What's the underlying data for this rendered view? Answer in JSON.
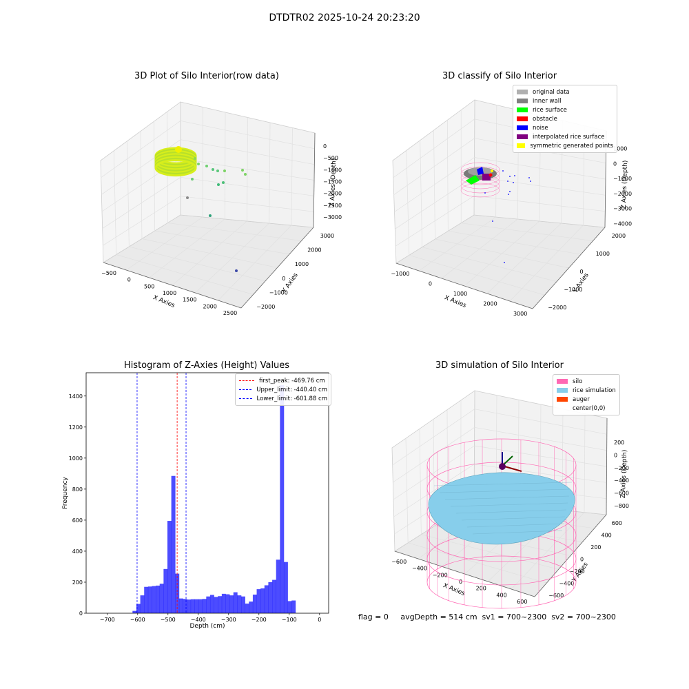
{
  "suptitle": "DTDTR02 2025-10-24 20:23:20",
  "panels": {
    "raw": {
      "title": "3D Plot of Silo Interior(row data)",
      "xlabel": "X Axies",
      "ylabel": "Y Axies",
      "zlabel": "Z Axies (Depth)",
      "xticks": [
        "−500",
        "0",
        "500",
        "1000",
        "1500",
        "2000",
        "2500"
      ],
      "yticks": [
        "−2000",
        "−1000",
        "0",
        "1000",
        "2000",
        "3000"
      ],
      "zticks": [
        "0",
        "−500",
        "−1000",
        "−1500",
        "−2000",
        "−2500",
        "−3000"
      ]
    },
    "classify": {
      "title": "3D classify of Silo Interior",
      "xlabel": "X Axies",
      "ylabel": "Y Axies",
      "zlabel": "Z Axies (Depth)",
      "xticks": [
        "−1000",
        "0",
        "1000",
        "2000",
        "3000"
      ],
      "yticks": [
        "−2000",
        "−1000",
        "0",
        "1000",
        "2000"
      ],
      "zticks": [
        "1000",
        "0",
        "−1000",
        "−2000",
        "−3000",
        "−4000"
      ],
      "legend": [
        {
          "label": "original data",
          "color": "#b0b0b0"
        },
        {
          "label": "inner wall",
          "color": "#808080"
        },
        {
          "label": "rice surface",
          "color": "#00ff00"
        },
        {
          "label": "obstacle",
          "color": "#ff0000"
        },
        {
          "label": "noise",
          "color": "#0000ff"
        },
        {
          "label": "interpolated rice surface",
          "color": "#800080"
        },
        {
          "label": "symmetric generated points",
          "color": "#ffff00"
        }
      ]
    },
    "simulation": {
      "title": "3D simulation of Silo Interior",
      "xlabel": "X Axies",
      "ylabel": "Y Axies",
      "zlabel": "Z Axies (Depth)",
      "xticks": [
        "−600",
        "−400",
        "−200",
        "0",
        "200",
        "400",
        "600"
      ],
      "yticks": [
        "−600",
        "−400",
        "−200",
        "0",
        "200",
        "400",
        "600"
      ],
      "zticks": [
        "200",
        "0",
        "−200",
        "−400",
        "−600",
        "−800"
      ],
      "legend": [
        {
          "label": "silo",
          "color": "#ff69b4"
        },
        {
          "label": "rice simulation",
          "color": "#87ceeb"
        },
        {
          "label": "auger",
          "color": "#ff4500"
        },
        {
          "label": "center(0,0)",
          "color": ""
        }
      ]
    }
  },
  "footer": "flag = 0     avgDepth = 514 cm  sv1 = 700~2300  sv2 = 700~2300",
  "chart_data": {
    "type": "bar",
    "title": "Histogram of Z-Axies (Height) Values",
    "xlabel": "Depth (cm)",
    "ylabel": "Frequency",
    "xlim": [
      -770,
      30
    ],
    "ylim": [
      0,
      1550
    ],
    "xticks": [
      -700,
      -600,
      -500,
      -400,
      -300,
      -200,
      -100,
      0
    ],
    "yticks": [
      0,
      200,
      400,
      600,
      800,
      1000,
      1200,
      1400
    ],
    "bar_color": "#0000ff",
    "bin_width": 12.8,
    "bin_edges_start": -617,
    "values": [
      15,
      60,
      115,
      170,
      172,
      175,
      178,
      190,
      285,
      595,
      885,
      255,
      95,
      92,
      88,
      90,
      90,
      90,
      92,
      108,
      118,
      105,
      110,
      125,
      122,
      115,
      135,
      115,
      108,
      62,
      75,
      120,
      155,
      160,
      180,
      200,
      215,
      345,
      1470,
      330,
      78,
      82
    ],
    "vlines": [
      {
        "label": "first_peak: -469.76 cm",
        "x": -469.76,
        "color": "#ff0000"
      },
      {
        "label": "Upper_limit: -440.40 cm",
        "x": -440.4,
        "color": "#0000ff"
      },
      {
        "label": "Lower_limit: -601.88 cm",
        "x": -601.88,
        "color": "#0000ff"
      }
    ],
    "legend_position": "top-right"
  }
}
